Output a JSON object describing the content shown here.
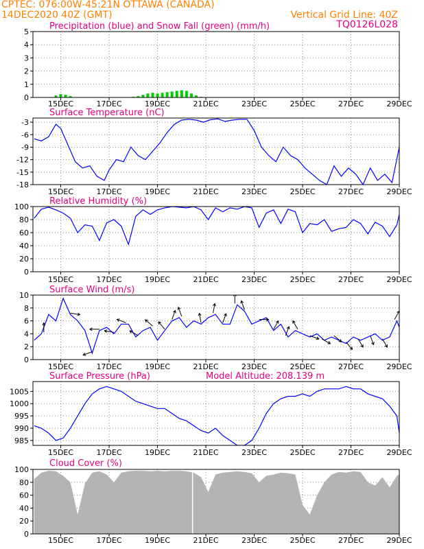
{
  "header": {
    "line1": "CPTEC:   076:00W-45:21N   OTTAWA (CANADA)",
    "line2": "14DEC2020 40Z (GMT)",
    "grid_line": "Vertical Grid Line: 40Z",
    "code": "TQ0126L028"
  },
  "colors": {
    "header": "#ff8000",
    "title": "#e6007e",
    "line": "#0000ff",
    "snow": "#00cc00",
    "cloud": "#b4b4b4",
    "grid": "#888888"
  },
  "x_ticks": [
    "15DEC",
    "17DEC",
    "19DEC",
    "21DEC",
    "23DEC",
    "25DEC",
    "27DEC",
    "29DEC"
  ],
  "chart_data": [
    {
      "type": "bar",
      "title": "Precipitation (blue) and Snow Fall (green) (mm/h)",
      "ylim": [
        0,
        5
      ],
      "yticks": [
        "0",
        "1",
        "2",
        "3",
        "4",
        "5"
      ],
      "x_unit": "day of December 2020",
      "series": [
        {
          "name": "Snow Fall",
          "color": "#00cc00",
          "x": [
            14.8,
            15.0,
            15.2,
            15.4,
            18.0,
            18.2,
            18.4,
            18.6,
            18.8,
            19.0,
            19.2,
            19.4,
            19.6,
            19.8,
            20.0,
            20.2,
            20.4,
            20.6,
            20.8
          ],
          "values": [
            0.15,
            0.25,
            0.2,
            0.1,
            0.05,
            0.1,
            0.2,
            0.3,
            0.35,
            0.3,
            0.35,
            0.4,
            0.45,
            0.5,
            0.55,
            0.5,
            0.3,
            0.15,
            0.05
          ]
        }
      ]
    },
    {
      "type": "line",
      "title": "Surface Temperature (nC)",
      "ylim": [
        -18,
        -2
      ],
      "yticks": [
        "-3",
        "-6",
        "-9",
        "-12",
        "-15",
        "-18"
      ],
      "x": [
        13.9,
        14.2,
        14.5,
        14.8,
        15.0,
        15.3,
        15.6,
        15.9,
        16.2,
        16.5,
        16.8,
        17.0,
        17.3,
        17.6,
        17.9,
        18.2,
        18.5,
        18.8,
        19.1,
        19.4,
        19.7,
        20.0,
        20.3,
        20.6,
        20.9,
        21.2,
        21.5,
        21.8,
        22.1,
        22.4,
        22.7,
        23.0,
        23.3,
        23.6,
        23.9,
        24.2,
        24.5,
        24.8,
        25.1,
        25.4,
        25.7,
        26.0,
        26.3,
        26.6,
        26.9,
        27.2,
        27.5,
        27.8,
        28.1,
        28.4,
        28.7,
        29.0
      ],
      "values": [
        -7,
        -7.5,
        -6.5,
        -3.5,
        -4.5,
        -8.5,
        -12.5,
        -14,
        -13.5,
        -16,
        -17,
        -14.5,
        -12,
        -12.5,
        -9,
        -11,
        -12,
        -10,
        -8,
        -5.5,
        -3.5,
        -2.5,
        -2.3,
        -2.5,
        -3,
        -2.4,
        -2.2,
        -2.8,
        -2.5,
        -2.3,
        -2.3,
        -5,
        -9,
        -11,
        -12.5,
        -9,
        -11,
        -12,
        -14,
        -15.5,
        -17,
        -18,
        -13.5,
        -16,
        -14,
        -15.5,
        -18,
        -14,
        -17,
        -15.5,
        -17.5,
        -9
      ],
      "series": [
        {
          "color": "#0000ff"
        }
      ]
    },
    {
      "type": "line",
      "title": "Relative Humidity (%)",
      "ylim": [
        0,
        100
      ],
      "yticks": [
        "0",
        "20",
        "40",
        "60",
        "80",
        "100"
      ],
      "x": [
        13.9,
        14.2,
        14.5,
        14.8,
        15.1,
        15.4,
        15.7,
        16.0,
        16.3,
        16.6,
        16.9,
        17.2,
        17.5,
        17.8,
        18.1,
        18.4,
        18.7,
        19.0,
        19.3,
        19.6,
        19.9,
        20.2,
        20.5,
        20.8,
        21.1,
        21.4,
        21.7,
        22.0,
        22.3,
        22.6,
        22.9,
        23.2,
        23.5,
        23.8,
        24.1,
        24.4,
        24.7,
        25.0,
        25.3,
        25.6,
        25.9,
        26.2,
        26.5,
        26.8,
        27.1,
        27.4,
        27.7,
        28.0,
        28.3,
        28.6,
        28.9,
        29.0
      ],
      "values": [
        82,
        96,
        99,
        95,
        90,
        82,
        60,
        72,
        70,
        48,
        75,
        80,
        70,
        42,
        85,
        95,
        88,
        95,
        98,
        100,
        99,
        98,
        100,
        95,
        80,
        98,
        92,
        98,
        96,
        100,
        98,
        68,
        90,
        95,
        74,
        96,
        92,
        60,
        74,
        72,
        80,
        62,
        66,
        68,
        80,
        74,
        58,
        76,
        70,
        54,
        72,
        88
      ],
      "series": [
        {
          "color": "#0000ff"
        }
      ]
    },
    {
      "type": "line",
      "title": "Surface Wind (m/s)",
      "ylim": [
        0,
        10
      ],
      "yticks": [
        "0",
        "2",
        "4",
        "6",
        "8",
        "10"
      ],
      "x": [
        13.9,
        14.2,
        14.5,
        14.8,
        15.1,
        15.4,
        15.7,
        16.0,
        16.3,
        16.6,
        16.9,
        17.2,
        17.5,
        17.8,
        18.1,
        18.4,
        18.7,
        19.0,
        19.3,
        19.6,
        19.9,
        20.2,
        20.5,
        20.8,
        21.1,
        21.4,
        21.7,
        22.0,
        22.3,
        22.6,
        22.9,
        23.2,
        23.5,
        23.8,
        24.1,
        24.4,
        24.7,
        25.0,
        25.3,
        25.6,
        25.9,
        26.2,
        26.5,
        26.8,
        27.1,
        27.4,
        27.7,
        28.0,
        28.3,
        28.6,
        28.9,
        29.0
      ],
      "values": [
        3,
        4,
        7,
        6,
        9.5,
        7,
        6,
        4.5,
        1,
        4.5,
        5,
        4,
        5.5,
        5.5,
        3.5,
        4.5,
        5,
        3,
        4.5,
        6,
        6.5,
        5,
        6,
        5.5,
        6.5,
        7,
        5.5,
        5.5,
        8.5,
        7.5,
        5.5,
        6,
        6.5,
        4.5,
        5.5,
        3.5,
        4.5,
        4,
        3.5,
        4,
        3,
        3.5,
        3,
        2.5,
        3.5,
        3,
        3.5,
        4,
        3,
        3.5,
        6,
        5
      ],
      "series": [
        {
          "color": "#0000ff"
        }
      ],
      "wind_barbs": [
        {
          "x": 14.3,
          "dir": 0
        },
        {
          "x": 15.4,
          "dir": 100
        },
        {
          "x": 16.3,
          "dir": 250
        },
        {
          "x": 16.6,
          "dir": 270
        },
        {
          "x": 17.2,
          "dir": 280
        },
        {
          "x": 17.7,
          "dir": 290
        },
        {
          "x": 18.2,
          "dir": 300
        },
        {
          "x": 18.8,
          "dir": 310
        },
        {
          "x": 19.3,
          "dir": 320
        },
        {
          "x": 19.6,
          "dir": 20
        },
        {
          "x": 20.0,
          "dir": 340
        },
        {
          "x": 20.8,
          "dir": 350
        },
        {
          "x": 21.3,
          "dir": 10
        },
        {
          "x": 21.7,
          "dir": 20
        },
        {
          "x": 22.2,
          "dir": 0
        },
        {
          "x": 22.6,
          "dir": 340
        },
        {
          "x": 23.2,
          "dir": 90
        },
        {
          "x": 23.8,
          "dir": 30
        },
        {
          "x": 24.3,
          "dir": 20
        },
        {
          "x": 24.8,
          "dir": 330
        },
        {
          "x": 25.3,
          "dir": 110
        },
        {
          "x": 25.8,
          "dir": 120
        },
        {
          "x": 26.3,
          "dir": 130
        },
        {
          "x": 26.8,
          "dir": 140
        },
        {
          "x": 27.3,
          "dir": 150
        },
        {
          "x": 27.8,
          "dir": 160
        },
        {
          "x": 28.3,
          "dir": 150
        },
        {
          "x": 28.8,
          "dir": 30
        }
      ]
    },
    {
      "type": "line",
      "title": "Surface Pressure (hPa)",
      "subtitle": "Model Altitude: 208.139 m",
      "ylim": [
        983,
        1009
      ],
      "yticks": [
        "985",
        "990",
        "995",
        "1000",
        "1005"
      ],
      "x": [
        13.9,
        14.2,
        14.5,
        14.8,
        15.1,
        15.4,
        15.7,
        16.0,
        16.3,
        16.6,
        16.9,
        17.2,
        17.5,
        17.8,
        18.1,
        18.4,
        18.7,
        19.0,
        19.3,
        19.6,
        19.9,
        20.2,
        20.5,
        20.8,
        21.1,
        21.4,
        21.7,
        22.0,
        22.3,
        22.6,
        22.9,
        23.2,
        23.5,
        23.8,
        24.1,
        24.4,
        24.7,
        25.0,
        25.3,
        25.6,
        25.9,
        26.2,
        26.5,
        26.8,
        27.1,
        27.4,
        27.7,
        28.0,
        28.3,
        28.6,
        28.9,
        29.0
      ],
      "values": [
        991,
        990,
        988,
        985,
        986,
        990,
        995,
        1000,
        1004,
        1006,
        1007,
        1006,
        1005,
        1003,
        1001,
        1000,
        999,
        998,
        998,
        996,
        994,
        993,
        991,
        989,
        988,
        990,
        987,
        985,
        983,
        983,
        985,
        990,
        996,
        1000,
        1002,
        1003,
        1003,
        1004,
        1003,
        1005,
        1006,
        1006,
        1006,
        1007,
        1006,
        1006,
        1004,
        1003,
        1002,
        999,
        995,
        988
      ],
      "series": [
        {
          "color": "#0000ff"
        }
      ]
    },
    {
      "type": "area",
      "title": "Cloud Cover (%)",
      "ylim": [
        0,
        100
      ],
      "yticks": [
        "0",
        "20",
        "40",
        "60",
        "80",
        "100"
      ],
      "x": [
        13.9,
        14.2,
        14.5,
        14.8,
        15.1,
        15.4,
        15.7,
        16.0,
        16.3,
        16.6,
        16.9,
        17.2,
        17.5,
        17.8,
        18.1,
        18.4,
        18.7,
        19.0,
        19.3,
        19.6,
        19.9,
        20.2,
        20.5,
        20.8,
        21.1,
        21.4,
        21.7,
        22.0,
        22.3,
        22.6,
        22.9,
        23.2,
        23.5,
        23.8,
        24.1,
        24.4,
        24.7,
        25.0,
        25.3,
        25.6,
        25.9,
        26.2,
        26.5,
        26.8,
        27.1,
        27.4,
        27.7,
        28.0,
        28.3,
        28.6,
        28.9,
        29.0
      ],
      "values": [
        85,
        95,
        98,
        97,
        90,
        80,
        30,
        78,
        95,
        97,
        92,
        80,
        95,
        97,
        98,
        98,
        97,
        98,
        97,
        98,
        98,
        97,
        95,
        88,
        65,
        92,
        95,
        96,
        97,
        96,
        94,
        80,
        90,
        92,
        95,
        94,
        92,
        45,
        30,
        60,
        80,
        92,
        96,
        95,
        97,
        96,
        80,
        75,
        88,
        72,
        90,
        92
      ],
      "series": [
        {
          "color": "#b4b4b4"
        }
      ]
    }
  ]
}
